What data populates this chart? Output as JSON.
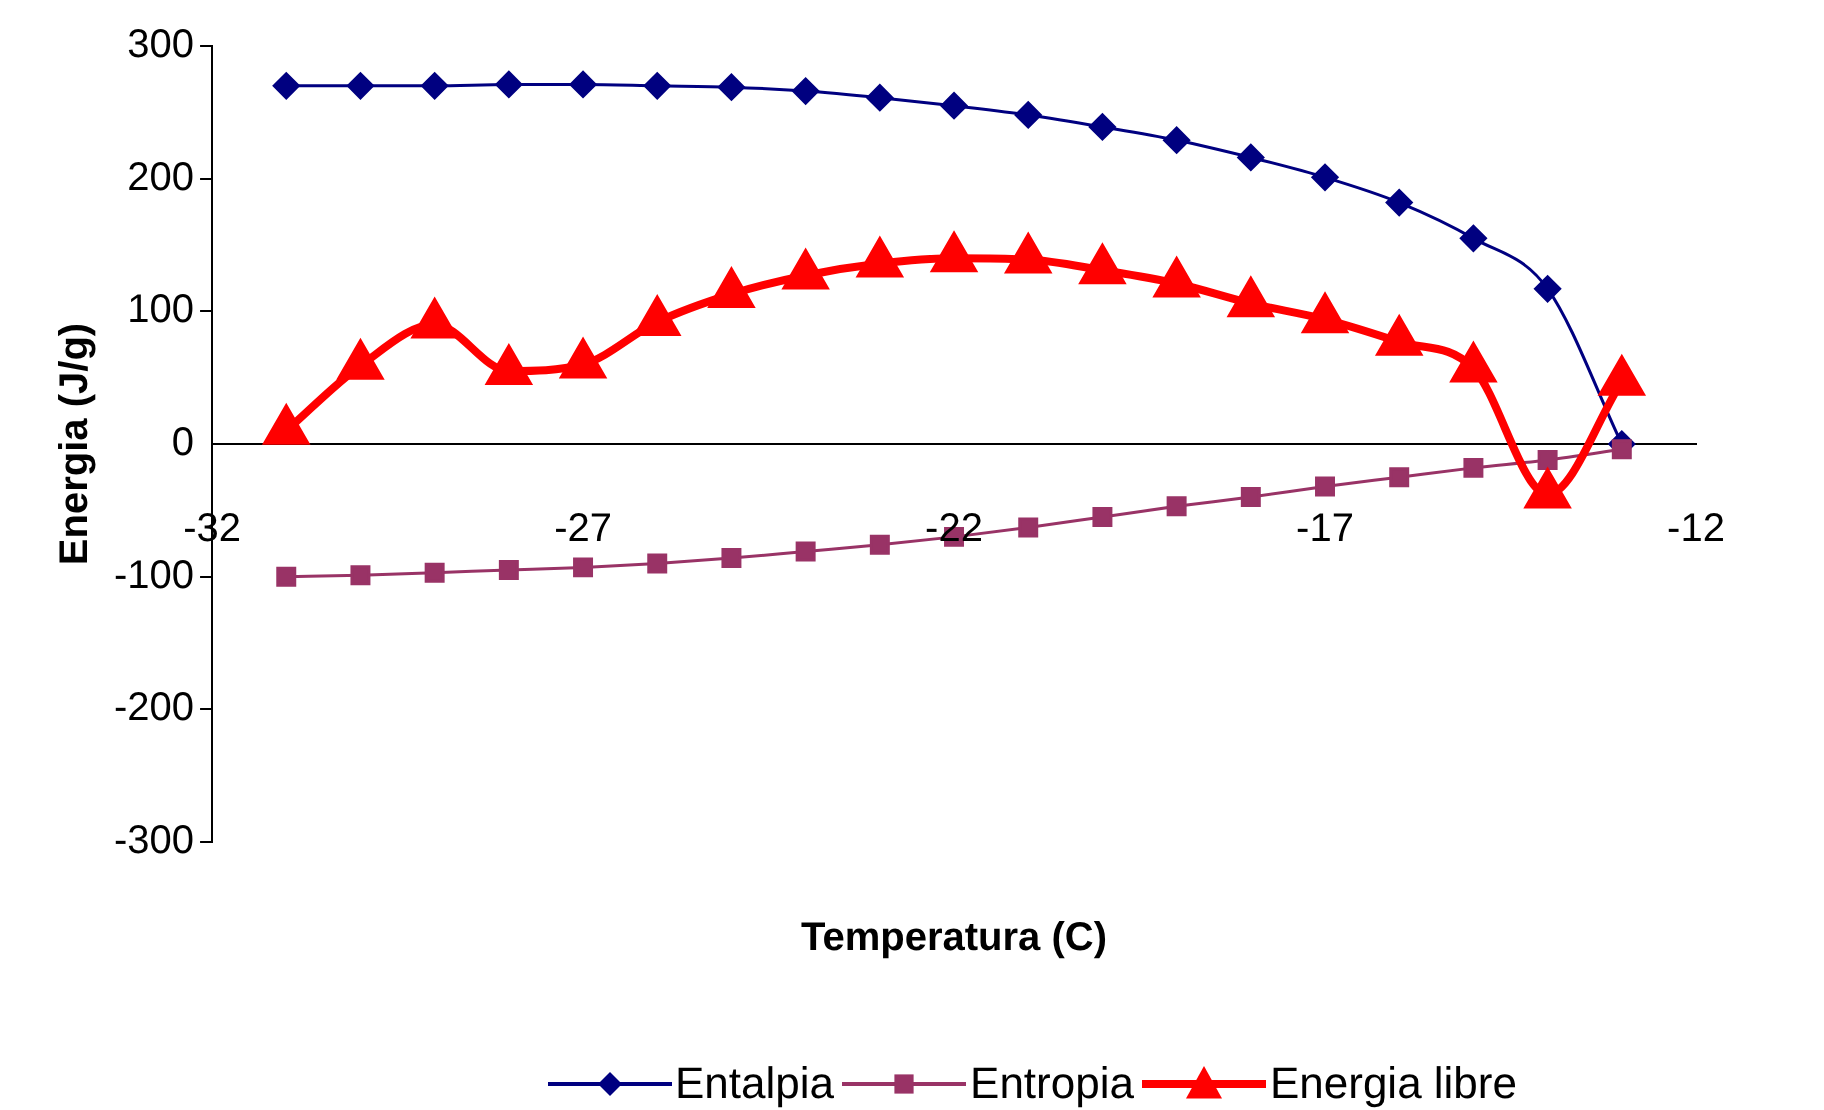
{
  "chart_data": {
    "type": "line",
    "xlabel": "Temperatura (C)",
    "ylabel": "Energia (J/g)",
    "x": [
      -31,
      -30,
      -29,
      -28,
      -27,
      -26,
      -25,
      -24,
      -23,
      -22,
      -21,
      -20,
      -19,
      -18,
      -17,
      -16,
      -15,
      -14,
      -13
    ],
    "xlim": [
      -32,
      -12
    ],
    "xticks": [
      -32,
      -27,
      -22,
      -17,
      -12
    ],
    "ylim": [
      -300,
      300
    ],
    "yticks": [
      -300,
      -200,
      -100,
      0,
      100,
      200,
      300
    ],
    "grid": false,
    "legend": "bottom",
    "series": [
      {
        "name": "Entalpia",
        "color": "#000080",
        "marker": "diamond",
        "values": [
          270,
          270,
          270,
          271,
          271,
          270,
          269,
          266,
          261,
          255,
          248,
          239,
          229,
          216,
          201,
          182,
          155,
          117,
          0
        ]
      },
      {
        "name": "Entropia",
        "color": "#993366",
        "marker": "square",
        "values": [
          -100,
          -99,
          -97,
          -95,
          -93,
          -90,
          -86,
          -81,
          -76,
          -70,
          -63,
          -55,
          -47,
          -40,
          -32,
          -25,
          -18,
          -12,
          -4
        ]
      },
      {
        "name": "Energia libre",
        "color": "#ff0000",
        "marker": "triangle",
        "values": [
          10,
          59,
          90,
          55,
          60,
          92,
          113,
          127,
          136,
          140,
          139,
          131,
          121,
          106,
          94,
          77,
          57,
          -38,
          47
        ]
      }
    ]
  }
}
